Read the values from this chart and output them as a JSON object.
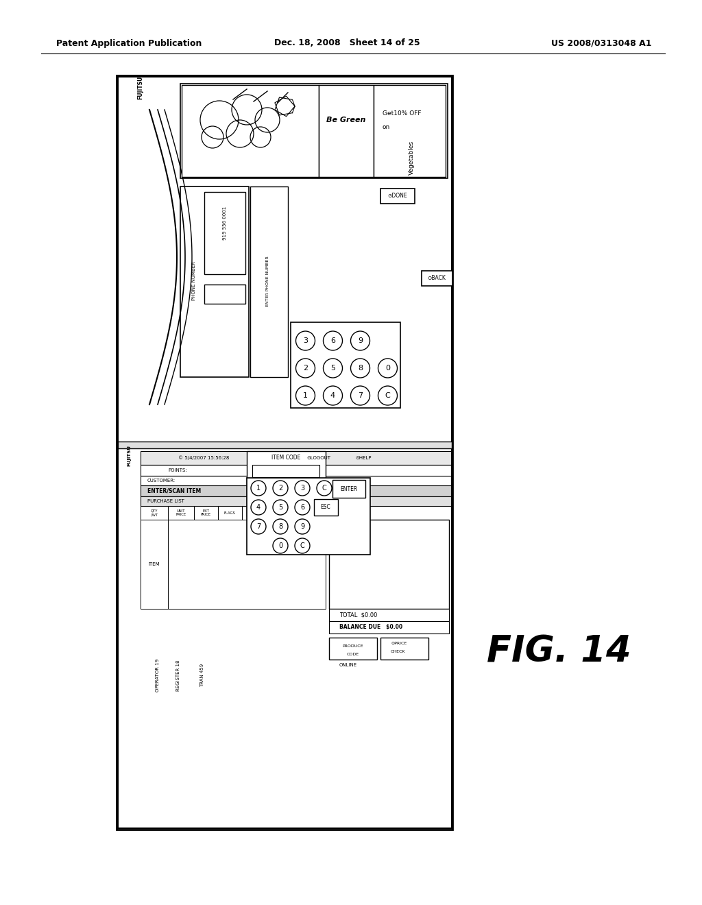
{
  "title_left": "Patent Application Publication",
  "title_mid": "Dec. 18, 2008   Sheet 14 of 25",
  "title_right": "US 2008/0313048 A1",
  "fig_label": "FIG. 14",
  "bg_color": "#ffffff"
}
